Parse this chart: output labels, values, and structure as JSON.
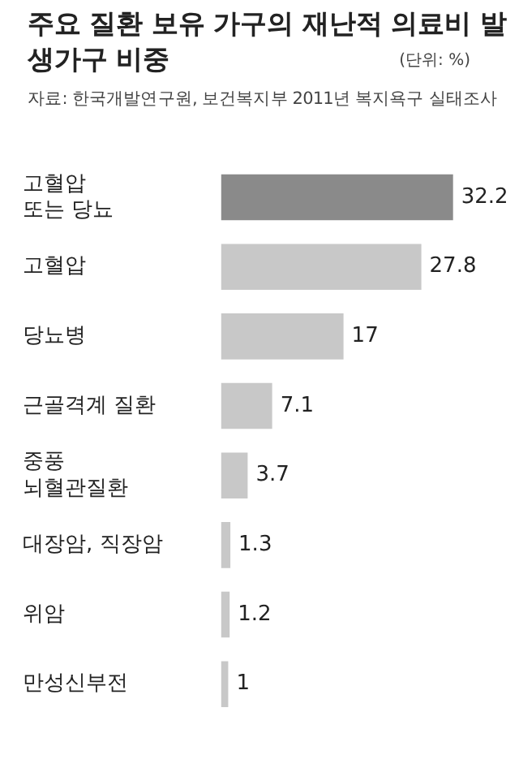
{
  "chart_data": {
    "type": "bar",
    "orientation": "horizontal",
    "title": "주요 질환 보유 가구의 재난적 의료비 발생가구 비중",
    "subtitle": "(단위: %)",
    "annotations": [
      "자료: 한국개발연구원, 보건복지부 2011년 복지욕구 실태조사"
    ],
    "categories": [
      "고혈압\n또는 당뇨",
      "고혈압",
      "당뇨병",
      "근골격계 질환",
      "중풍\n뇌혈관질환",
      "대장암, 직장암",
      "위암",
      "만성신부전"
    ],
    "values": [
      32.2,
      27.8,
      17,
      7.1,
      3.7,
      1.3,
      1.2,
      1
    ],
    "colors": [
      "#8a8a8a",
      "#c8c8c8",
      "#c8c8c8",
      "#c8c8c8",
      "#c8c8c8",
      "#c8c8c8",
      "#c8c8c8",
      "#c8c8c8"
    ],
    "data_labels": true,
    "legend": false
  }
}
